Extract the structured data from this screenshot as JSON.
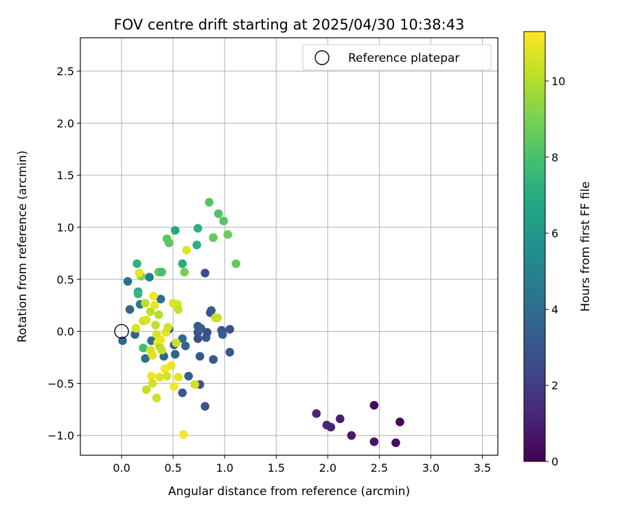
{
  "chart_data": {
    "type": "scatter",
    "title": "FOV centre drift starting at 2025/04/30 10:38:43",
    "xlabel": "Angular distance from reference (arcmin)",
    "ylabel": "Rotation from reference (arcmin)",
    "xlim": [
      -0.4,
      3.65
    ],
    "ylim": [
      -1.19,
      2.82
    ],
    "xticks": [
      0.0,
      0.5,
      1.0,
      1.5,
      2.0,
      2.5,
      3.0,
      3.5
    ],
    "xtick_labels": [
      "0.0",
      "0.5",
      "1.0",
      "1.5",
      "2.0",
      "2.5",
      "3.0",
      "3.5"
    ],
    "yticks": [
      -1.0,
      -0.5,
      0.0,
      0.5,
      1.0,
      1.5,
      2.0,
      2.5
    ],
    "ytick_labels": [
      "−1.0",
      "−0.5",
      "0.0",
      "0.5",
      "1.0",
      "1.5",
      "2.0",
      "2.5"
    ],
    "grid": true,
    "legend": {
      "position": "top-right",
      "entries": [
        {
          "label": "Reference platepar",
          "marker": "open-circle"
        }
      ]
    },
    "reference_point": {
      "x": 0.0,
      "y": 0.0
    },
    "colorbar": {
      "label": "Hours from first FF file",
      "colormap": "viridis",
      "range": [
        0,
        11.3
      ],
      "ticks": [
        0,
        2,
        4,
        6,
        8,
        10
      ],
      "tick_labels": [
        "0",
        "2",
        "4",
        "6",
        "8",
        "10"
      ]
    },
    "points": [
      {
        "x": 1.89,
        "y": -0.79,
        "c": 1.2
      },
      {
        "x": 1.99,
        "y": -0.9,
        "c": 1.3
      },
      {
        "x": 2.03,
        "y": -0.92,
        "c": 1.1
      },
      {
        "x": 2.12,
        "y": -0.84,
        "c": 1.0
      },
      {
        "x": 2.23,
        "y": -1.0,
        "c": 0.8
      },
      {
        "x": 2.45,
        "y": -0.71,
        "c": 0.3
      },
      {
        "x": 2.45,
        "y": -1.06,
        "c": 0.6
      },
      {
        "x": 2.66,
        "y": -1.07,
        "c": 0.4
      },
      {
        "x": 2.7,
        "y": -0.87,
        "c": 0.2
      },
      {
        "x": 0.01,
        "y": -0.09,
        "c": 3.8
      },
      {
        "x": 0.06,
        "y": 0.48,
        "c": 4.2
      },
      {
        "x": 0.08,
        "y": 0.21,
        "c": 3.6
      },
      {
        "x": 0.13,
        "y": -0.03,
        "c": 3.4
      },
      {
        "x": 0.18,
        "y": 0.26,
        "c": 4.5
      },
      {
        "x": 0.23,
        "y": -0.26,
        "c": 4.0
      },
      {
        "x": 0.27,
        "y": 0.52,
        "c": 4.8
      },
      {
        "x": 0.29,
        "y": -0.09,
        "c": 3.9
      },
      {
        "x": 0.38,
        "y": 0.31,
        "c": 4.1
      },
      {
        "x": 0.41,
        "y": -0.24,
        "c": 3.7
      },
      {
        "x": 0.46,
        "y": 0.02,
        "c": 3.3
      },
      {
        "x": 0.51,
        "y": -0.13,
        "c": 3.2
      },
      {
        "x": 0.52,
        "y": -0.22,
        "c": 3.5
      },
      {
        "x": 0.59,
        "y": -0.07,
        "c": 3.8
      },
      {
        "x": 0.59,
        "y": -0.59,
        "c": 3.2
      },
      {
        "x": 0.62,
        "y": -0.14,
        "c": 3.6
      },
      {
        "x": 0.65,
        "y": -0.43,
        "c": 3.4
      },
      {
        "x": 0.74,
        "y": 0.05,
        "c": 3.1
      },
      {
        "x": 0.74,
        "y": -0.01,
        "c": 2.9
      },
      {
        "x": 0.74,
        "y": -0.07,
        "c": 2.8
      },
      {
        "x": 0.76,
        "y": -0.24,
        "c": 3.2
      },
      {
        "x": 0.76,
        "y": -0.51,
        "c": 3.0
      },
      {
        "x": 0.77,
        "y": 0.03,
        "c": 3.4
      },
      {
        "x": 0.81,
        "y": 0.56,
        "c": 2.8
      },
      {
        "x": 0.81,
        "y": -0.72,
        "c": 2.9
      },
      {
        "x": 0.82,
        "y": -0.06,
        "c": 3.1
      },
      {
        "x": 0.83,
        "y": -0.01,
        "c": 2.7
      },
      {
        "x": 0.86,
        "y": 0.18,
        "c": 2.9
      },
      {
        "x": 0.87,
        "y": 0.2,
        "c": 3.1
      },
      {
        "x": 0.89,
        "y": -0.27,
        "c": 3.0
      },
      {
        "x": 0.97,
        "y": 0.01,
        "c": 2.9
      },
      {
        "x": 0.98,
        "y": -0.03,
        "c": 3.3
      },
      {
        "x": 1.05,
        "y": 0.02,
        "c": 2.8
      },
      {
        "x": 1.05,
        "y": -0.2,
        "c": 3.1
      },
      {
        "x": 0.15,
        "y": 0.65,
        "c": 7.2
      },
      {
        "x": 0.16,
        "y": 0.38,
        "c": 6.7
      },
      {
        "x": 0.16,
        "y": 0.36,
        "c": 7.5
      },
      {
        "x": 0.21,
        "y": -0.16,
        "c": 7.8
      },
      {
        "x": 0.36,
        "y": 0.57,
        "c": 8.6
      },
      {
        "x": 0.39,
        "y": 0.57,
        "c": 7.9
      },
      {
        "x": 0.44,
        "y": 0.89,
        "c": 8.5
      },
      {
        "x": 0.46,
        "y": 0.85,
        "c": 8.4
      },
      {
        "x": 0.52,
        "y": 0.97,
        "c": 6.8
      },
      {
        "x": 0.59,
        "y": 0.65,
        "c": 7.0
      },
      {
        "x": 0.73,
        "y": 0.83,
        "c": 7.1
      },
      {
        "x": 0.74,
        "y": 0.99,
        "c": 7.2
      },
      {
        "x": 0.85,
        "y": 1.24,
        "c": 8.2
      },
      {
        "x": 0.89,
        "y": 0.9,
        "c": 8.6
      },
      {
        "x": 0.94,
        "y": 1.13,
        "c": 8.1
      },
      {
        "x": 0.99,
        "y": 1.06,
        "c": 8.3
      },
      {
        "x": 1.03,
        "y": 0.93,
        "c": 8.7
      },
      {
        "x": 1.11,
        "y": 0.65,
        "c": 8.6
      },
      {
        "x": 0.19,
        "y": 0.53,
        "c": 9.1
      },
      {
        "x": 0.61,
        "y": 0.57,
        "c": 9.0
      },
      {
        "x": 0.14,
        "y": 0.03,
        "c": 10.6
      },
      {
        "x": 0.17,
        "y": 0.56,
        "c": 10.9
      },
      {
        "x": 0.21,
        "y": 0.1,
        "c": 10.4
      },
      {
        "x": 0.23,
        "y": 0.27,
        "c": 10.2
      },
      {
        "x": 0.24,
        "y": 0.11,
        "c": 10.7
      },
      {
        "x": 0.24,
        "y": -0.56,
        "c": 10.3
      },
      {
        "x": 0.28,
        "y": 0.19,
        "c": 10.1
      },
      {
        "x": 0.28,
        "y": -0.18,
        "c": 10.6
      },
      {
        "x": 0.29,
        "y": -0.43,
        "c": 11.0
      },
      {
        "x": 0.3,
        "y": -0.5,
        "c": 10.5
      },
      {
        "x": 0.3,
        "y": -0.23,
        "c": 10.8
      },
      {
        "x": 0.31,
        "y": 0.34,
        "c": 11.1
      },
      {
        "x": 0.32,
        "y": 0.25,
        "c": 10.9
      },
      {
        "x": 0.33,
        "y": 0.06,
        "c": 10.2
      },
      {
        "x": 0.34,
        "y": -0.03,
        "c": 10.6
      },
      {
        "x": 0.34,
        "y": -0.64,
        "c": 10.4
      },
      {
        "x": 0.35,
        "y": -0.11,
        "c": 11.2
      },
      {
        "x": 0.36,
        "y": 0.16,
        "c": 10.0
      },
      {
        "x": 0.37,
        "y": -0.15,
        "c": 10.1
      },
      {
        "x": 0.37,
        "y": -0.44,
        "c": 10.7
      },
      {
        "x": 0.38,
        "y": -0.08,
        "c": 11.0
      },
      {
        "x": 0.39,
        "y": -0.18,
        "c": 10.3
      },
      {
        "x": 0.42,
        "y": -0.36,
        "c": 11.1
      },
      {
        "x": 0.43,
        "y": -0.01,
        "c": 10.8
      },
      {
        "x": 0.44,
        "y": -0.43,
        "c": 10.6
      },
      {
        "x": 0.45,
        "y": 0.04,
        "c": 10.5
      },
      {
        "x": 0.48,
        "y": -0.33,
        "c": 11.0
      },
      {
        "x": 0.5,
        "y": 0.27,
        "c": 10.7
      },
      {
        "x": 0.51,
        "y": -0.53,
        "c": 11.2
      },
      {
        "x": 0.53,
        "y": -0.11,
        "c": 10.4
      },
      {
        "x": 0.54,
        "y": 0.26,
        "c": 10.6
      },
      {
        "x": 0.55,
        "y": 0.21,
        "c": 10.3
      },
      {
        "x": 0.55,
        "y": -0.44,
        "c": 10.9
      },
      {
        "x": 0.6,
        "y": -0.99,
        "c": 11.1
      },
      {
        "x": 0.63,
        "y": 0.78,
        "c": 10.8
      },
      {
        "x": 0.71,
        "y": -0.51,
        "c": 10.5
      },
      {
        "x": 0.91,
        "y": 0.13,
        "c": 10.6
      },
      {
        "x": 0.93,
        "y": 0.13,
        "c": 10.3
      }
    ]
  }
}
